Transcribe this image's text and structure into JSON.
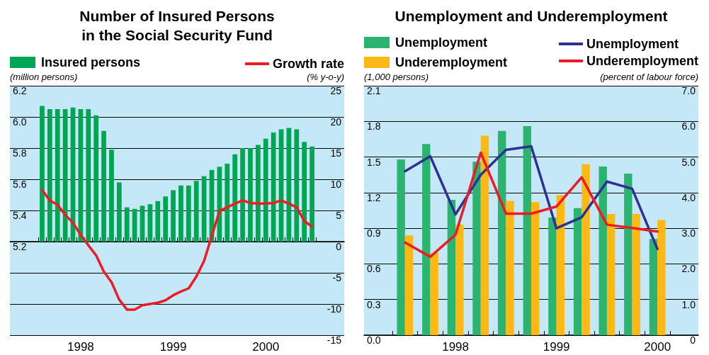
{
  "chart_data": [
    {
      "type": "bar",
      "title": "Number of Insured Persons\nin the Social Security Fund",
      "ylabel": "(million persons)",
      "y2label": "(% y-o-y)",
      "categories": [
        null,
        null,
        null,
        null,
        null,
        "1998",
        null,
        null,
        null,
        null,
        null,
        null,
        null,
        null,
        null,
        null,
        null,
        "1999",
        null,
        null,
        null,
        null,
        null,
        null,
        null,
        null,
        null,
        null,
        null,
        "2000",
        null,
        null,
        null,
        null,
        null,
        null
      ],
      "series": [
        {
          "name": "Insured persons",
          "color": "#00a651",
          "base": [
            5.2,
            5.2,
            5.2,
            5.2,
            5.2,
            5.2,
            5.2,
            5.2,
            5.2,
            5.2,
            5.2,
            5.2,
            5.2,
            5.2,
            5.2,
            5.2,
            5.2,
            5.2,
            5.2,
            5.2,
            5.2,
            5.2,
            5.2,
            5.2,
            5.2,
            5.2,
            5.2,
            5.2,
            5.2,
            5.2,
            5.2,
            5.2,
            5.2,
            5.2,
            5.2,
            5.2
          ],
          "values": [
            0.87,
            0.85,
            0.85,
            0.85,
            0.86,
            0.85,
            0.85,
            0.81,
            0.71,
            0.59,
            0.38,
            0.22,
            0.21,
            0.23,
            0.24,
            0.26,
            0.29,
            0.33,
            0.36,
            0.36,
            0.39,
            0.42,
            0.46,
            0.48,
            0.5,
            0.56,
            0.6,
            0.6,
            0.62,
            0.66,
            0.7,
            0.72,
            0.73,
            0.72,
            0.64,
            0.61
          ]
        },
        {
          "name": "Growth rate",
          "type": "line",
          "axis": "y2",
          "color": "#ed1c24",
          "values": [
            8.3,
            6.6,
            5.9,
            4.3,
            3.0,
            1.1,
            -0.6,
            -2.2,
            -4.8,
            -6.5,
            -9.3,
            -10.9,
            -10.9,
            -10.2,
            -10.0,
            -9.8,
            -9.4,
            -8.6,
            -8.0,
            -7.5,
            -5.6,
            -3.1,
            0.9,
            4.9,
            5.5,
            6.1,
            6.6,
            6.2,
            6.1,
            6.1,
            6.2,
            6.6,
            6.1,
            5.5,
            3.3,
            2.4
          ]
        }
      ],
      "ylim": [
        4.6,
        6.2
      ],
      "yticks": [
        5.2,
        5.4,
        5.6,
        5.8,
        {
          "value": 6,
          "label": "6.0"
        },
        6.2
      ],
      "y2lim": [
        -15,
        25
      ],
      "y2ticks": [
        -15,
        -10,
        -5,
        0,
        5,
        10,
        15,
        20,
        25
      ],
      "grid": "y",
      "legend": "top",
      "marker": "none",
      "line_style": "solid"
    },
    {
      "type": "bar",
      "title": "Unemployment and Underemployment",
      "ylabel": "(1,000 persons)",
      "y2label": "(percent of labour force)",
      "categories": [
        null,
        null,
        "1998",
        null,
        null,
        null,
        "1999",
        null,
        null,
        null,
        "2000"
      ],
      "series": [
        {
          "name": "Unemployment",
          "color": "#2bb370",
          "values": [
            1.48,
            1.61,
            1.14,
            1.46,
            1.72,
            1.76,
            0.99,
            1.07,
            1.42,
            1.36,
            0.81
          ]
        },
        {
          "name": "Underemployment",
          "color": "#fdb913",
          "values": [
            0.84,
            0.69,
            0.93,
            1.68,
            1.13,
            1.12,
            1.18,
            1.44,
            1.02,
            1.02,
            0.97
          ]
        },
        {
          "name": "Unemployment",
          "type": "line",
          "axis": "y2",
          "color": "#2e3192",
          "values": [
            4.6,
            5.02,
            3.39,
            4.5,
            5.2,
            5.3,
            3.0,
            3.31,
            4.31,
            4.11,
            2.42
          ]
        },
        {
          "name": "Underemployment",
          "type": "line",
          "axis": "y2",
          "color": "#ed1c24",
          "values": [
            2.6,
            2.2,
            2.82,
            5.12,
            3.41,
            3.41,
            3.61,
            4.43,
            3.1,
            3.01,
            2.91
          ]
        }
      ],
      "ylim": [
        0,
        2.1
      ],
      "yticks": [
        {
          "value": 0,
          "label": "0.0"
        },
        0.3,
        0.6,
        0.9,
        1.2,
        1.5,
        1.8,
        2.1
      ],
      "y2lim": [
        0,
        7
      ],
      "y2ticks": [
        0,
        {
          "value": 1,
          "label": "1.0"
        },
        {
          "value": 2,
          "label": "2.0"
        },
        {
          "value": 3,
          "label": "3.0"
        },
        {
          "value": 4,
          "label": "4.0"
        },
        {
          "value": 5,
          "label": "5.0"
        },
        {
          "value": 6,
          "label": "6.0"
        },
        {
          "value": 7,
          "label": "7.0"
        }
      ],
      "grid": "y",
      "legend": "top",
      "marker": "none",
      "line_style": "solid"
    }
  ]
}
